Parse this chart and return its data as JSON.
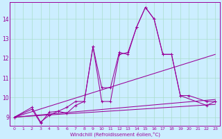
{
  "xlabel": "Windchill (Refroidissement éolien,°C)",
  "bg_color": "#cceeff",
  "grid_color": "#aaddcc",
  "line_color": "#990099",
  "x_ticks": [
    0,
    1,
    2,
    3,
    4,
    5,
    6,
    7,
    8,
    9,
    10,
    11,
    12,
    13,
    14,
    15,
    16,
    17,
    18,
    19,
    20,
    21,
    22,
    23
  ],
  "y_ticks": [
    9,
    10,
    11,
    12,
    13,
    14
  ],
  "ylim": [
    8.55,
    14.85
  ],
  "xlim": [
    -0.5,
    23.5
  ],
  "line1_x": [
    0,
    2,
    3,
    4,
    5,
    6,
    7,
    8,
    9,
    10,
    11,
    12,
    13,
    14,
    15,
    16,
    17,
    18,
    19,
    22,
    23
  ],
  "line1_y": [
    9.0,
    9.5,
    8.75,
    9.1,
    9.3,
    9.2,
    9.6,
    9.8,
    12.6,
    10.5,
    10.5,
    12.3,
    12.2,
    13.6,
    14.6,
    14.0,
    12.2,
    12.2,
    10.1,
    9.6,
    9.8
  ],
  "line2_x": [
    0,
    2,
    3,
    4,
    5,
    6,
    7,
    8,
    9,
    10,
    11,
    12,
    13,
    14,
    15,
    16,
    17,
    18,
    19,
    20,
    22,
    23
  ],
  "line2_y": [
    9.0,
    9.4,
    8.7,
    9.25,
    9.3,
    9.5,
    9.8,
    9.8,
    12.6,
    9.8,
    9.8,
    12.2,
    12.3,
    13.6,
    14.6,
    14.0,
    12.2,
    12.2,
    10.1,
    10.1,
    9.8,
    9.8
  ],
  "line3_x": [
    0,
    23
  ],
  "line3_y": [
    9.0,
    12.2
  ],
  "line4_x": [
    0,
    23
  ],
  "line4_y": [
    9.0,
    9.9
  ],
  "line5_x": [
    0,
    23
  ],
  "line5_y": [
    9.0,
    9.65
  ]
}
